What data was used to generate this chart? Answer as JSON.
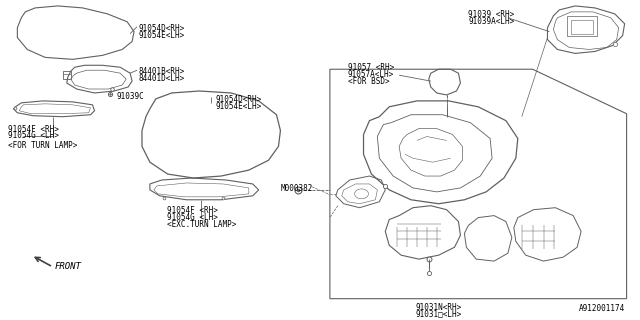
{
  "bg_color": "#ffffff",
  "diagram_id": "A912001174",
  "labels": {
    "top_outer_shell": [
      "91054D<RH>",
      "91054E<LH>"
    ],
    "turn_lamp_rh_lh": [
      "84401B<RH>",
      "84401D<LH>"
    ],
    "inner_bracket": "91039C",
    "side_trim_rh_lh": [
      "91054F <RH>",
      "91054G <LH>"
    ],
    "for_turn_lamp": "<FOR TURN LAMP>",
    "mid_outer_shell": [
      "91054D<RH>",
      "91054E<LH>"
    ],
    "bottom_trim_rh_lh": [
      "91054F <RH>",
      "91054G <LH>"
    ],
    "exc_turn_lamp": "<EXC.TURN LAMP>",
    "bolt": "M000382",
    "mirror_glass": [
      "91039 <RH>",
      "91039A<LH>"
    ],
    "bsd_unit": [
      "91057 <RH>",
      "91057A<LH>",
      "<FOR BSD>"
    ],
    "main_body_rh_lh": [
      "91031N<RH>",
      "91031□<LH>"
    ],
    "front_arrow": "FRONT"
  },
  "line_color": "#606060",
  "text_color": "#000000",
  "font_size": 5.5
}
